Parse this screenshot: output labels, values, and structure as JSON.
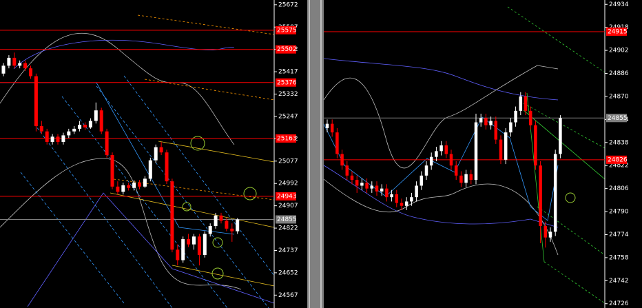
{
  "chart_data": [
    {
      "type": "candlestick",
      "ylim": [
        24518,
        25690
      ],
      "yticks": [
        25672,
        25587,
        25502,
        25417,
        25332,
        25247,
        25162,
        25077,
        24992,
        24907,
        24822,
        24737,
        24652,
        24567
      ],
      "up_color": "#ffffff",
      "down_color": "#ff0000",
      "levels": [
        {
          "value": 25575,
          "color": "#ff0000"
        },
        {
          "value": 25502,
          "color": "#ff0000"
        },
        {
          "value": 25376,
          "color": "#ff0000"
        },
        {
          "value": 25163,
          "color": "#ff0000"
        },
        {
          "value": 24943,
          "color": "#ff0000"
        },
        {
          "value": 24855,
          "color": "#808080"
        }
      ],
      "candles": [
        [
          25410,
          25450,
          25400,
          25440
        ],
        [
          25440,
          25480,
          25430,
          25470
        ],
        [
          25470,
          25490,
          25430,
          25440
        ],
        [
          25440,
          25460,
          25430,
          25450
        ],
        [
          25450,
          25460,
          25420,
          25430
        ],
        [
          25430,
          25440,
          25390,
          25400
        ],
        [
          25400,
          25410,
          25190,
          25210
        ],
        [
          25210,
          25230,
          25180,
          25190
        ],
        [
          25190,
          25200,
          25140,
          25150
        ],
        [
          25150,
          25180,
          25140,
          25170
        ],
        [
          25170,
          25180,
          25140,
          25150
        ],
        [
          25150,
          25185,
          25140,
          25175
        ],
        [
          25175,
          25200,
          25165,
          25190
        ],
        [
          25190,
          25210,
          25180,
          25200
        ],
        [
          25200,
          25230,
          25190,
          25215
        ],
        [
          25215,
          25225,
          25195,
          25205
        ],
        [
          25205,
          25240,
          25200,
          25230
        ],
        [
          25230,
          25300,
          25220,
          25270
        ],
        [
          25270,
          25280,
          25180,
          25190
        ],
        [
          25190,
          25200,
          25090,
          25100
        ],
        [
          25100,
          25110,
          24970,
          24980
        ],
        [
          24980,
          25000,
          24950,
          24960
        ],
        [
          24960,
          24995,
          24950,
          24985
        ],
        [
          24985,
          24995,
          24965,
          24975
        ],
        [
          24975,
          25005,
          24965,
          24995
        ],
        [
          24995,
          25005,
          24970,
          24980
        ],
        [
          24980,
          25020,
          24975,
          25010
        ],
        [
          25010,
          25090,
          25000,
          25080
        ],
        [
          25080,
          25140,
          25070,
          25130
        ],
        [
          25130,
          25150,
          25100,
          25110
        ],
        [
          25110,
          25120,
          24990,
          25000
        ],
        [
          25000,
          25010,
          24730,
          24740
        ],
        [
          24740,
          24760,
          24680,
          24700
        ],
        [
          24700,
          24790,
          24690,
          24780
        ],
        [
          24780,
          24800,
          24750,
          24760
        ],
        [
          24760,
          24800,
          24740,
          24790
        ],
        [
          24790,
          24800,
          24680,
          24720
        ],
        [
          24720,
          24810,
          24710,
          24800
        ],
        [
          24800,
          24840,
          24790,
          24830
        ],
        [
          24830,
          24880,
          24820,
          24870
        ],
        [
          24870,
          24880,
          24840,
          24850
        ],
        [
          24850,
          24860,
          24810,
          24820
        ],
        [
          24820,
          24840,
          24770,
          24810
        ],
        [
          24810,
          24860,
          24800,
          24855
        ]
      ]
    },
    {
      "type": "candlestick",
      "ylim": [
        24723,
        24937
      ],
      "yticks": [
        24934,
        24918,
        24902,
        24886,
        24870,
        24854,
        24838,
        24822,
        24806,
        24790,
        24774,
        24758,
        24742,
        24726
      ],
      "up_color": "#ffffff",
      "down_color": "#ff0000",
      "levels": [
        {
          "value": 24915,
          "color": "#ff0000"
        },
        {
          "value": 24855,
          "color": "#808080"
        },
        {
          "value": 24826,
          "color": "#ff0000"
        }
      ],
      "candles": [
        [
          24848,
          24854,
          24845,
          24851
        ],
        [
          24851,
          24854,
          24842,
          24845
        ],
        [
          24845,
          24848,
          24827,
          24830
        ],
        [
          24830,
          24833,
          24819,
          24822
        ],
        [
          24822,
          24825,
          24812,
          24815
        ],
        [
          24815,
          24818,
          24809,
          24812
        ],
        [
          24812,
          24815,
          24803,
          24808
        ],
        [
          24808,
          24813,
          24805,
          24810
        ],
        [
          24810,
          24813,
          24803,
          24806
        ],
        [
          24806,
          24811,
          24803,
          24808
        ],
        [
          24808,
          24811,
          24801,
          24804
        ],
        [
          24804,
          24809,
          24801,
          24806
        ],
        [
          24806,
          24809,
          24797,
          24800
        ],
        [
          24800,
          24805,
          24797,
          24802
        ],
        [
          24802,
          24805,
          24793,
          24796
        ],
        [
          24796,
          24799,
          24791,
          24794
        ],
        [
          24794,
          24800,
          24791,
          24797
        ],
        [
          24797,
          24803,
          24794,
          24800
        ],
        [
          24800,
          24811,
          24797,
          24808
        ],
        [
          24808,
          24818,
          24805,
          24815
        ],
        [
          24815,
          24825,
          24812,
          24822
        ],
        [
          24822,
          24831,
          24819,
          24828
        ],
        [
          24828,
          24835,
          24825,
          24832
        ],
        [
          24832,
          24839,
          24829,
          24836
        ],
        [
          24836,
          24839,
          24827,
          24830
        ],
        [
          24830,
          24833,
          24819,
          24822
        ],
        [
          24822,
          24825,
          24812,
          24815
        ],
        [
          24815,
          24818,
          24807,
          24810
        ],
        [
          24810,
          24819,
          24807,
          24816
        ],
        [
          24816,
          24819,
          24809,
          24812
        ],
        [
          24812,
          24858,
          24809,
          24852
        ],
        [
          24852,
          24858,
          24849,
          24855
        ],
        [
          24855,
          24858,
          24847,
          24850
        ],
        [
          24850,
          24856,
          24847,
          24853
        ],
        [
          24853,
          24856,
          24837,
          24840
        ],
        [
          24840,
          24843,
          24823,
          24826
        ],
        [
          24826,
          24848,
          24823,
          24845
        ],
        [
          24845,
          24855,
          24842,
          24852
        ],
        [
          24852,
          24863,
          24849,
          24860
        ],
        [
          24860,
          24873,
          24857,
          24870
        ],
        [
          24870,
          24873,
          24857,
          24860
        ],
        [
          24860,
          24863,
          24847,
          24850
        ],
        [
          24850,
          24853,
          24819,
          24822
        ],
        [
          24822,
          24825,
          24768,
          24780
        ],
        [
          24780,
          24783,
          24765,
          24772
        ],
        [
          24772,
          24779,
          24769,
          24776
        ],
        [
          24776,
          24833,
          24773,
          24830
        ],
        [
          24830,
          24857,
          24827,
          24855
        ]
      ]
    }
  ]
}
